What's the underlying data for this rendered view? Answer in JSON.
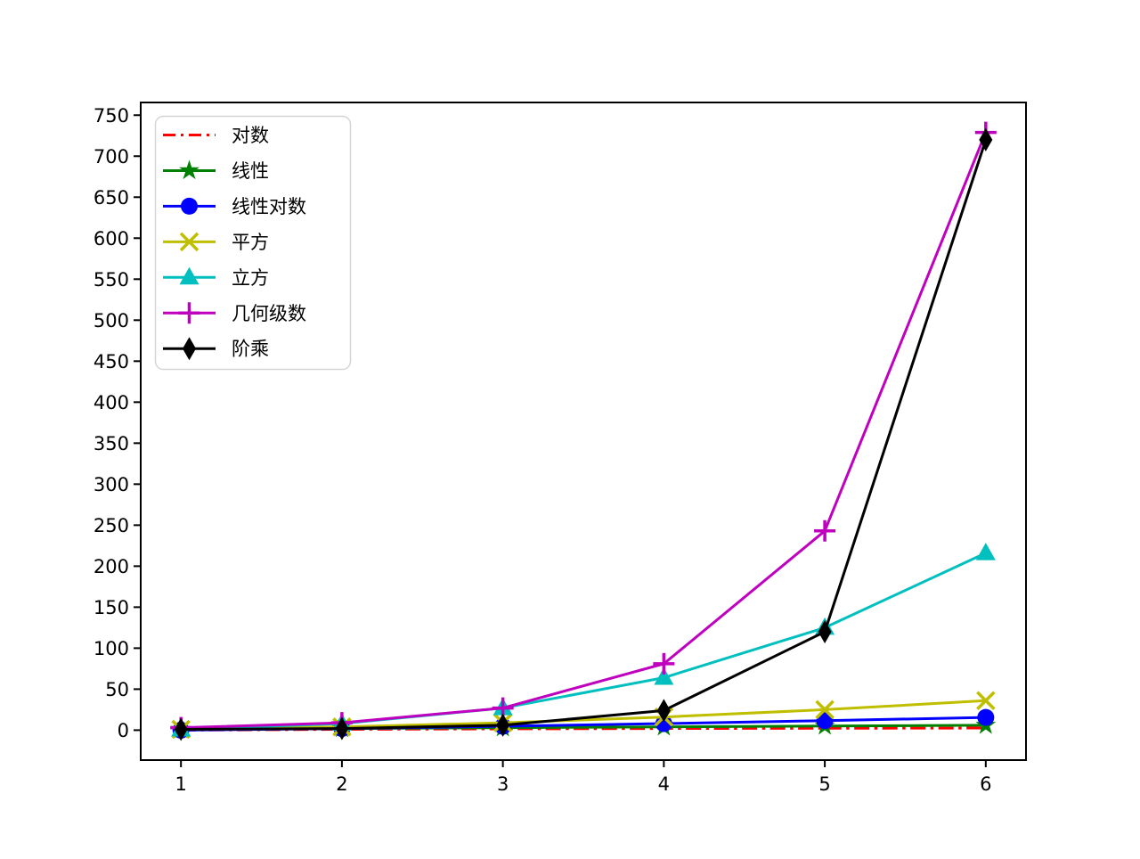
{
  "figure": {
    "background": "#ffffff"
  },
  "chart_data": {
    "type": "line",
    "title": "",
    "xlabel": "",
    "ylabel": "",
    "grid": false,
    "x": [
      1,
      2,
      3,
      4,
      5,
      6
    ],
    "xlim": [
      0.75,
      6.25
    ],
    "ylim": [
      -36.5,
      765.5
    ],
    "xticks": [
      1,
      2,
      3,
      4,
      5,
      6
    ],
    "yticks": [
      0,
      50,
      100,
      150,
      200,
      250,
      300,
      350,
      400,
      450,
      500,
      550,
      600,
      650,
      700,
      750
    ],
    "axis_color": "#000000",
    "legend": {
      "position": "upper-left",
      "border_color": "#d5d5d5",
      "background": "#ffffff"
    },
    "series": [
      {
        "id": "log",
        "name": "对数",
        "color": "#ff0000",
        "linestyle": "dashdot",
        "marker": "none",
        "values": [
          0,
          1,
          1.585,
          2,
          2.322,
          2.585
        ]
      },
      {
        "id": "linear",
        "name": "线性",
        "color": "#008000",
        "linestyle": "solid",
        "marker": "star",
        "values": [
          1,
          2,
          3,
          4,
          5,
          6
        ]
      },
      {
        "id": "n-log-n",
        "name": "线性对数",
        "color": "#0000ff",
        "linestyle": "solid",
        "marker": "circle",
        "values": [
          0,
          2,
          4.755,
          8,
          11.61,
          15.51
        ]
      },
      {
        "id": "square",
        "name": "平方",
        "color": "#bfbf00",
        "linestyle": "solid",
        "marker": "x",
        "values": [
          1,
          4,
          9,
          16,
          25,
          36
        ]
      },
      {
        "id": "cube",
        "name": "立方",
        "color": "#00bfbf",
        "linestyle": "solid",
        "marker": "triangle-up",
        "values": [
          1,
          8,
          27,
          64,
          125,
          216
        ]
      },
      {
        "id": "geometric",
        "name": "几何级数",
        "color": "#bf00bf",
        "linestyle": "solid",
        "marker": "plus",
        "values": [
          3,
          9,
          27,
          81,
          243,
          729
        ]
      },
      {
        "id": "factorial",
        "name": "阶乘",
        "color": "#000000",
        "linestyle": "solid",
        "marker": "thin-diamond",
        "values": [
          1,
          2,
          6,
          24,
          120,
          720
        ]
      }
    ]
  }
}
